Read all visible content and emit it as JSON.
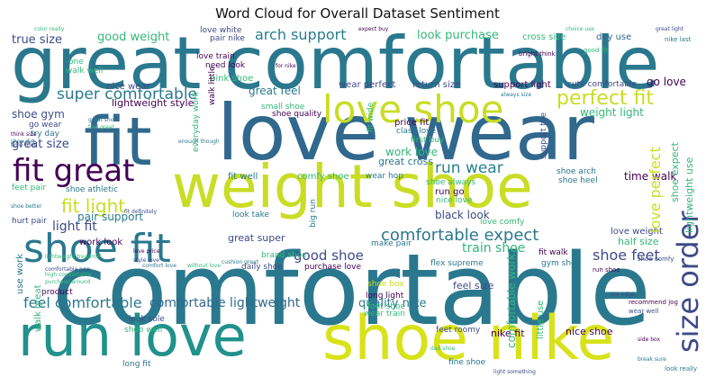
{
  "title": "Word Cloud for Overall Dataset Sentiment",
  "colors": {
    "teal": "#2a788e",
    "blue": "#3e4a89",
    "purple": "#440154",
    "green": "#35b779",
    "yellow": "#c8dd24",
    "lime": "#7ad151",
    "cyan": "#22a884"
  },
  "words": {
    "comfortable_big": "comfortable",
    "great_comfortable": "great comfortable",
    "love_wear": "love wear",
    "weight_shoe": "weight shoe",
    "run_love": "run love",
    "shoe_nike": "shoe nike",
    "fit": "fit",
    "love_shoe": "love shoe",
    "shoe_fit": "shoe fit",
    "fit_great": "fit great",
    "size_order": "size order",
    "perfect_fit": "perfect fit",
    "super_comfortable": "super comfortable",
    "arch_support": "arch support",
    "look_purchase": "look purchase",
    "good_weight": "good weight",
    "true_size": "true size",
    "fit_light": "fit light",
    "comfortable_expect": "comfortable expect",
    "run_wear": "run wear",
    "feel_comfortable": "feel comfortable",
    "comfortable_lightweight": "comfortable lightweight",
    "quality_nike": "quality nike",
    "good_shoe": "good shoe",
    "shoe_feet": "shoe feet",
    "train_shoe": "train shoe",
    "light_fit": "light fit",
    "great_size": "great size",
    "weight_light": "weight light",
    "great_feel": "great feel",
    "lightweight_style": "lightweight style",
    "shoe_gym": "shoe gym",
    "time_walk": "time walk",
    "black_look": "black look",
    "pair_support": "pair support",
    "work_look": "work look",
    "go_love": "go love",
    "cross_size": "cross size",
    "day_use": "day use",
    "nice_wear": "nice wear",
    "pink_shoe": "pink shoe",
    "love_train": "love train",
    "need_look": "need look",
    "highly_shoe": "highly shoe",
    "fit_cute": "fit cute",
    "pair_nike": "pair nike",
    "love_white": "love white",
    "wear_perfect": "wear perfect",
    "return_size": "return size",
    "support_light": "support light",
    "cute_comfortable": "cute comfortable",
    "small_shoe": "small shoe",
    "shoe_quality": "shoe quality",
    "price_fit": "price fit",
    "class_love": "class love",
    "first_buy": "first buy",
    "work_love": "work love",
    "great_cross": "great cross",
    "fit_well": "fit well",
    "comfy_shoe": "comfy shoe",
    "wear_hop": "wear hop",
    "shoe_always": "shoe always",
    "shoe_arch": "shoe arch",
    "shoe_heel": "shoe heel",
    "shoe_athletic": "shoe athletic",
    "feet_pair": "feet pair",
    "run_go": "run go",
    "nice_love": "nice love",
    "love_comfy": "love comfy",
    "love_perfect": "love perfect",
    "look_take": "look take",
    "great_super": "great super",
    "brand_shoe": "brand shoe",
    "hurt_pair": "hurt pair",
    "love_weight": "love weight",
    "half_size": "half size",
    "fit_walk": "fit walk",
    "gym_shoe": "gym shoe",
    "make_pair": "make pair",
    "flex_supreme": "flex supreme",
    "purchase_love": "purchase love",
    "daily_shoe": "daily shoe",
    "feel_size": "feel size",
    "long_light": "long light",
    "foot_shoe": "foot shoe",
    "shoe_box": "shoe box",
    "wear_train": "wear train",
    "feet_roomy": "feet roomy",
    "nike_fit": "nike fit",
    "nice_shoe": "nice shoe",
    "look_sole": "look sole",
    "shoe_well": "shoe well",
    "long_fit": "long fit",
    "fine_shoe": "fine shoe",
    "walk_little": "walk little",
    "everyday_work": "everyday work",
    "shoe_expect": "shoe expect",
    "lightweight_use": "lightweight use",
    "comfortable_work": "comfortable work",
    "support_toe": "support toe",
    "walk_great": "walk great",
    "use_work": "use work",
    "little_use": "little use",
    "big_run": "big run",
    "fit_wide": "fit wide",
    "product": "product",
    "try_day": "try day",
    "go_wear": "go wear",
    "one": "one",
    "walk_well": "walk well",
    "recommend_jog": "recommend jog",
    "wear_well": "wear well",
    "look_really": "look really",
    "shoe_comfy": "shoe comfy",
    "run_shoe": "run shoe",
    "good_fit": "good fit",
    "great_shoe": "great shoe",
    "feel_great": "feel great",
    "cushion_great": "cushion great",
    "for_nike": "for nike",
    "bright_think": "bright think",
    "light_something": "light something",
    "choice_use": "choice use",
    "expect_buy": "expect buy",
    "color_really": "color really",
    "nike_last": "nike last",
    "great_light": "great light",
    "look_good": "look good",
    "shoe_use": "shoe use",
    "love_price": "love price",
    "style_love": "style love",
    "lightweight_treadmill": "lightweight treadmill",
    "comfortable_now": "comfortable now",
    "high_comfortable": "high comfortable",
    "purchase_around": "purchase around",
    "think_size": "think size",
    "shoe_dirt": "shoe dirt",
    "shoe_better": "shoe better",
    "without_love": "without love",
    "comfort_love": "comfort love",
    "fit_definitely": "fit definitely",
    "dad_shoe": "dad shoe",
    "break_sure": "break sure",
    "toe_edge": "toe edge",
    "side_box": "side box",
    "always_size": "always size",
    "enough_though": "enough though",
    "time_tried": "time tried"
  }
}
